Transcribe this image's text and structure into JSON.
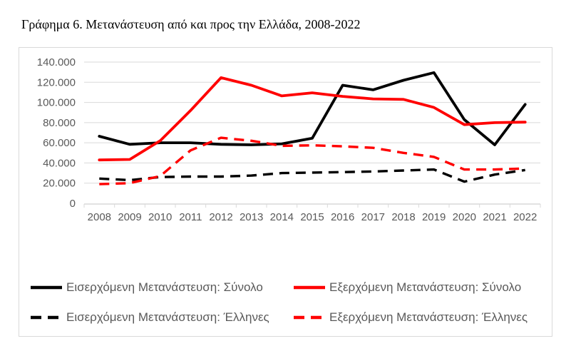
{
  "chart_data": {
    "type": "line",
    "title": "Γράφημα 6. Μετανάστευση από και προς την Ελλάδα, 2008-2022",
    "categories": [
      "2008",
      "2009",
      "2010",
      "2011",
      "2012",
      "2013",
      "2014",
      "2015",
      "2016",
      "2017",
      "2018",
      "2019",
      "2020",
      "2021",
      "2022"
    ],
    "series": [
      {
        "name": "Εισερχόμενη Μετανάστευση: Σύνολο",
        "color": "#000000",
        "style": "solid",
        "values": [
          66500,
          58500,
          60000,
          60000,
          58500,
          58000,
          59000,
          64500,
          117000,
          112500,
          122000,
          129500,
          83000,
          58000,
          98000
        ]
      },
      {
        "name": "Εξερχόμενη Μετανάστευση: Σύνολο",
        "color": "#ff0000",
        "style": "solid",
        "values": [
          43000,
          43500,
          62000,
          92000,
          124500,
          117000,
          106500,
          109500,
          106000,
          103500,
          103000,
          95000,
          78000,
          80000,
          80500
        ]
      },
      {
        "name": "Εισερχόμενη Μετανάστευση: Έλληνες",
        "color": "#000000",
        "style": "dashed",
        "values": [
          24500,
          23000,
          26000,
          26500,
          26500,
          27500,
          30000,
          30500,
          31000,
          31500,
          32500,
          33500,
          21500,
          28500,
          33000
        ]
      },
      {
        "name": "Εξερχόμενη Μετανάστευση: Έλληνες",
        "color": "#ff0000",
        "style": "dashed",
        "values": [
          19000,
          20000,
          27000,
          52500,
          65000,
          62000,
          57000,
          57500,
          56500,
          55000,
          50000,
          46000,
          33500,
          33500,
          34500
        ]
      }
    ],
    "ylim": [
      0,
      140000
    ],
    "ytick_step": 20000,
    "ytick_labels": [
      "0",
      "20.000",
      "40.000",
      "60.000",
      "80.000",
      "100.000",
      "120.000",
      "140.000"
    ],
    "grid": true,
    "legend_position": "bottom",
    "colors": {
      "grid": "#d9d9d9",
      "axis_line": "#d9d9d9",
      "axis_text": "#595959",
      "legend_text": "#595959",
      "border": "#d9d9d9",
      "background": "#ffffff"
    }
  }
}
